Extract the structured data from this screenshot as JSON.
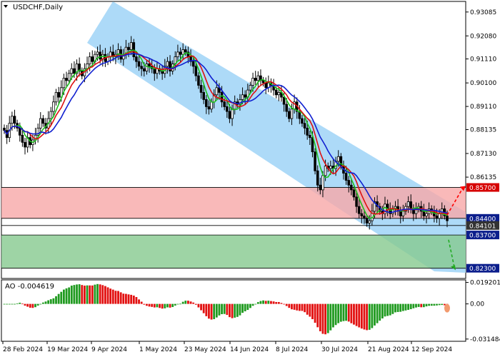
{
  "chart_data": {
    "type": "candlestick",
    "symbol_label": "USDCHF,Daily",
    "colors": {
      "bull": "#000000",
      "bear": "#000000",
      "channel": "#9fd3f7",
      "resistance_zone": "#f7a7a7",
      "support_zone": "#86c98f",
      "ma_fast": "#1fc01f",
      "ma_mid": "#dd1111",
      "ma_slow": "#1020d0",
      "ao_up": "#1f9a1f",
      "ao_down": "#e21010",
      "arrow_up": "#ff0000",
      "arrow_down": "#22aa22"
    },
    "price_axis": {
      "min": 0.8187,
      "max": 0.9353,
      "ticks": [
        "0.93085",
        "0.92080",
        "0.91110",
        "0.90100",
        "0.89110",
        "0.88135",
        "0.87130",
        "0.86135"
      ]
    },
    "time_axis": {
      "labels": [
        "28 Feb 2024",
        "19 Mar 2024",
        "9 Apr 2024",
        "1 May 2024",
        "23 May 2024",
        "14 Jun 2024",
        "8 Jul 2024",
        "30 Jul 2024",
        "21 Aug 2024",
        "12 Sep 2024"
      ]
    },
    "levels": [
      {
        "value": 0.857,
        "label": "0.85700",
        "color": "#d60000"
      },
      {
        "value": 0.844,
        "label": "0.84400",
        "color": "#0b1e8c"
      },
      {
        "value": 0.841,
        "label": "0.84101",
        "color": "#333333"
      },
      {
        "value": 0.837,
        "label": "0.83700",
        "color": "#0b1e8c"
      },
      {
        "value": 0.823,
        "label": "0.82300",
        "color": "#0b1e8c"
      }
    ],
    "zones": [
      {
        "kind": "resistance",
        "from": 0.844,
        "to": 0.857
      },
      {
        "kind": "support",
        "from": 0.823,
        "to": 0.837
      }
    ],
    "ohlc_close": [
      0.881,
      0.878,
      0.884,
      0.887,
      0.884,
      0.882,
      0.879,
      0.876,
      0.874,
      0.878,
      0.875,
      0.877,
      0.879,
      0.882,
      0.886,
      0.884,
      0.882,
      0.886,
      0.889,
      0.893,
      0.897,
      0.895,
      0.899,
      0.903,
      0.902,
      0.905,
      0.907,
      0.905,
      0.909,
      0.906,
      0.904,
      0.907,
      0.909,
      0.912,
      0.91,
      0.913,
      0.914,
      0.911,
      0.913,
      0.91,
      0.912,
      0.914,
      0.912,
      0.913,
      0.915,
      0.911,
      0.913,
      0.916,
      0.915,
      0.918,
      0.912,
      0.91,
      0.908,
      0.907,
      0.906,
      0.909,
      0.908,
      0.907,
      0.905,
      0.907,
      0.906,
      0.905,
      0.908,
      0.91,
      0.906,
      0.909,
      0.912,
      0.914,
      0.913,
      0.915,
      0.914,
      0.912,
      0.91,
      0.908,
      0.904,
      0.9,
      0.897,
      0.894,
      0.891,
      0.89,
      0.893,
      0.896,
      0.899,
      0.897,
      0.893,
      0.891,
      0.889,
      0.886,
      0.89,
      0.893,
      0.892,
      0.894,
      0.896,
      0.895,
      0.898,
      0.9,
      0.903,
      0.902,
      0.904,
      0.902,
      0.901,
      0.899,
      0.901,
      0.9,
      0.898,
      0.896,
      0.897,
      0.895,
      0.892,
      0.889,
      0.886,
      0.89,
      0.893,
      0.889,
      0.886,
      0.884,
      0.882,
      0.879,
      0.878,
      0.872,
      0.864,
      0.858,
      0.856,
      0.862,
      0.866,
      0.865,
      0.866,
      0.865,
      0.868,
      0.87,
      0.866,
      0.863,
      0.86,
      0.858,
      0.856,
      0.853,
      0.849,
      0.846,
      0.845,
      0.844,
      0.842,
      0.843,
      0.847,
      0.851,
      0.849,
      0.847,
      0.846,
      0.85,
      0.848,
      0.846,
      0.848,
      0.849,
      0.847,
      0.845,
      0.847,
      0.849,
      0.851,
      0.848,
      0.846,
      0.848,
      0.849,
      0.847,
      0.845,
      0.846,
      0.848,
      0.847,
      0.845,
      0.844,
      0.846,
      0.848,
      0.845,
      0.843
    ],
    "moving_averages": [
      {
        "color_key": "ma_fast",
        "period": 5
      },
      {
        "color_key": "ma_mid",
        "period": 8
      },
      {
        "color_key": "ma_slow",
        "period": 13
      }
    ],
    "oscillator": {
      "label": "AO -0.004619",
      "ticks": [
        0.019201,
        0.0,
        -0.031484
      ],
      "tick_labels": [
        "0.019201",
        "0.00",
        "-0.031484"
      ],
      "min": -0.0335,
      "max": 0.0215
    },
    "legend": "none",
    "grid": false
  }
}
